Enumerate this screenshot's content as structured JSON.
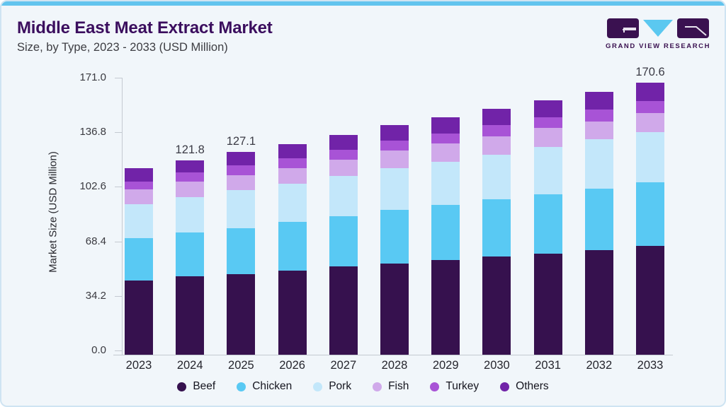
{
  "page": {
    "title": "Middle East Meat Extract Market",
    "subtitle": "Size, by Type, 2023 - 2033 (USD Million)",
    "brand_text": "GRAND VIEW RESEARCH"
  },
  "theme": {
    "card_background": "#f1f6fa",
    "top_strip_color": "#62c4ee",
    "title_color": "#3b0e5e",
    "axis_line_color": "#c4cad1",
    "logo_dark": "#3a1150",
    "logo_blue": "#5bc8f0"
  },
  "chart_data": {
    "type": "bar",
    "stacked": true,
    "title": "Middle East Meat Extract Market Size, by Type, 2023 - 2033 (USD Million)",
    "ylabel": "Market Size (USD Million)",
    "xlabel": "",
    "ylim": [
      0,
      171.0
    ],
    "yticks": [
      0.0,
      34.2,
      68.4,
      102.6,
      136.8,
      171.0
    ],
    "grid": false,
    "legend_position": "bottom",
    "categories": [
      "2023",
      "2024",
      "2025",
      "2026",
      "2027",
      "2028",
      "2029",
      "2030",
      "2031",
      "2032",
      "2033"
    ],
    "series": [
      {
        "name": "Beef",
        "color": "#36114e",
        "values": [
          46.7,
          49.2,
          50.7,
          52.9,
          55.4,
          57.3,
          59.2,
          61.8,
          63.5,
          65.4,
          68.4
        ]
      },
      {
        "name": "Chicken",
        "color": "#59c9f3",
        "values": [
          26.4,
          27.3,
          28.8,
          30.2,
          31.5,
          33.5,
          34.7,
          35.7,
          37.3,
          38.7,
          39.8
        ]
      },
      {
        "name": "Pork",
        "color": "#c3e7fa",
        "values": [
          21.1,
          22.1,
          23.6,
          24.1,
          25.0,
          26.3,
          27.2,
          28.0,
          29.6,
          31.0,
          31.4
        ]
      },
      {
        "name": "Fish",
        "color": "#d0a9ea",
        "values": [
          9.3,
          10.0,
          9.3,
          9.9,
          10.4,
          11.1,
          11.5,
          11.5,
          11.8,
          11.2,
          11.9
        ]
      },
      {
        "name": "Turkey",
        "color": "#a853d6",
        "values": [
          5.1,
          5.5,
          6.2,
          6.2,
          6.2,
          6.2,
          6.3,
          7.0,
          6.9,
          7.4,
          7.7
        ]
      },
      {
        "name": "Others",
        "color": "#7123a8",
        "values": [
          8.5,
          7.7,
          8.5,
          8.9,
          9.5,
          9.7,
          9.9,
          10.0,
          10.4,
          11.3,
          11.4
        ]
      }
    ],
    "totals": [
      117.1,
      121.8,
      127.1,
      132.2,
      138.0,
      144.1,
      148.8,
      154.0,
      159.5,
      165.0,
      170.6
    ],
    "bar_value_labels": [
      "",
      "121.8",
      "127.1",
      "",
      "",
      "",
      "",
      "",
      "",
      "",
      "170.6"
    ]
  }
}
